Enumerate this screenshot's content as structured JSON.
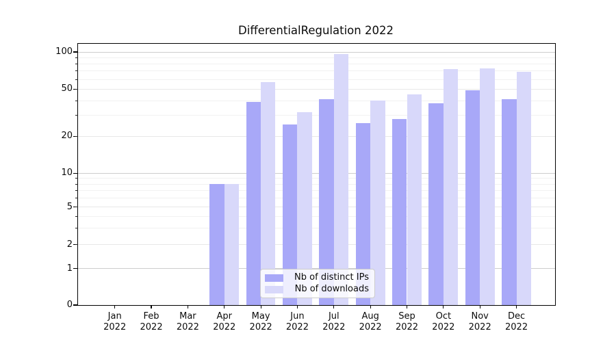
{
  "chart_data": {
    "type": "bar",
    "title": "DifferentialRegulation 2022",
    "categories": [
      "Jan 2022",
      "Feb 2022",
      "Mar 2022",
      "Apr 2022",
      "May 2022",
      "Jun 2022",
      "Jul 2022",
      "Aug 2022",
      "Sep 2022",
      "Oct 2022",
      "Nov 2022",
      "Dec 2022"
    ],
    "series": [
      {
        "name": "Nb of distinct IPs",
        "color": "#a8a8f8",
        "values": [
          0,
          0,
          0,
          8,
          39,
          25,
          41,
          26,
          28,
          38,
          49,
          41
        ]
      },
      {
        "name": "Nb of downloads",
        "color": "#d8d8fa",
        "values": [
          0,
          0,
          0,
          8,
          57,
          32,
          96,
          40,
          45,
          73,
          74,
          69
        ]
      }
    ],
    "xlabel": "",
    "ylabel": "",
    "yscale": "log-like (0 at baseline)",
    "y_ticks": [
      0,
      1,
      2,
      5,
      10,
      20,
      50,
      100
    ],
    "y_sub_gridlines": [
      2,
      5,
      20,
      50
    ],
    "y_decade_gridlines": [
      1,
      10,
      100
    ],
    "y_minor_gridlines": [
      3,
      4,
      6,
      7,
      8,
      9,
      30,
      40,
      60,
      70,
      80,
      90
    ],
    "ylim": [
      0,
      110
    ],
    "grid": "horizontal",
    "legend_position": "lower center",
    "background_color": "#ffffff",
    "spine_color": "#000000"
  }
}
